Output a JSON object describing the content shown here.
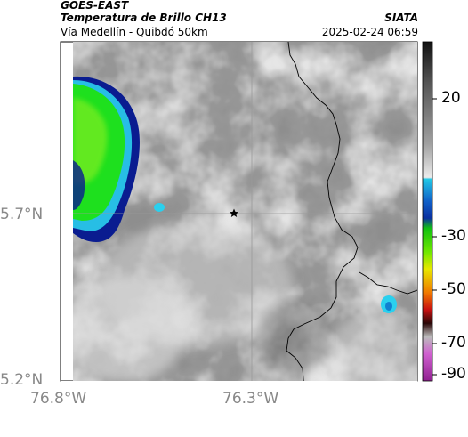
{
  "header": {
    "title": "GOES-EAST",
    "subtitle": "Temperatura de Brillo CH13",
    "route": "Vía Medellín - Quibdó 50km",
    "org": "SIATA",
    "timestamp": "2025-02-24 06:59"
  },
  "axes": {
    "lat_ticks": [
      "5.7°N",
      "5.2°N"
    ],
    "lon_ticks": [
      "76.8°W",
      "76.3°W"
    ],
    "grid_color": "#9a9a9a"
  },
  "colorbar": {
    "labels": [
      "20",
      "-30",
      "-50",
      "-70",
      "-90"
    ],
    "colors": {
      "warm_top": "#1a1a1a",
      "gray_mid": "#a8a8a8",
      "gray_light": "#e8e8e8",
      "cyan": "#22c8e6",
      "blue": "#0a30a0",
      "green": "#10d810",
      "yellow": "#e8e800",
      "orange": "#f07800",
      "red": "#c81010",
      "dark": "#2a0808",
      "magenta": "#b040b0"
    }
  },
  "map": {
    "marker": "star-icon",
    "cloud_green": "#1ee01e",
    "cloud_blue": "#0a1c90",
    "cloud_cyan": "#2ad0ee",
    "border_color": "#000000",
    "base_gray": "#8e8e8e"
  }
}
